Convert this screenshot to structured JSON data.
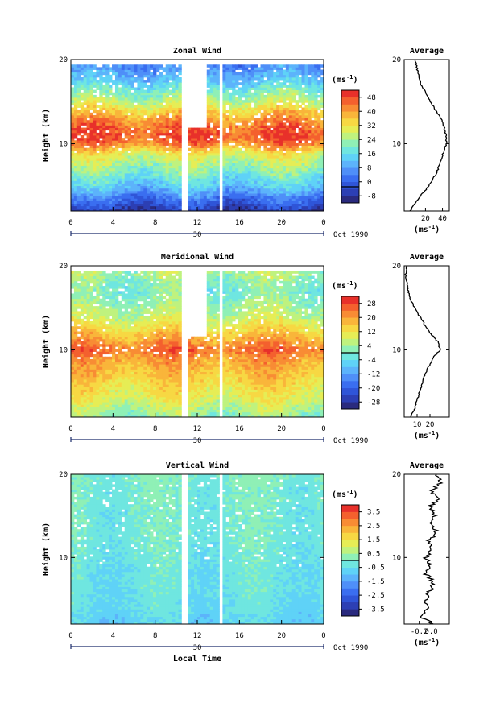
{
  "chart_data": [
    {
      "type": "heatmap",
      "title": "Zonal Wind",
      "ylabel": "Height (km)",
      "ylim": [
        2,
        20
      ],
      "y_ticks": [
        "10",
        "20"
      ],
      "xlim": [
        0,
        24
      ],
      "x_ticks": [
        "0",
        "4",
        "8",
        "12",
        "16",
        "20",
        "0"
      ],
      "date_label": "30",
      "month_label": "Oct 1990",
      "colorbar": {
        "unit_prefix": "(ms",
        "unit_sup": "-1",
        "unit_suffix": ")",
        "ticks": [
          "48",
          "40",
          "32",
          "24",
          "16",
          "8",
          "0",
          "-8"
        ],
        "range": [
          -8,
          48
        ]
      },
      "average": {
        "title": "Average",
        "xlim": [
          -5,
          48
        ],
        "x_ticks": [
          "20",
          "40"
        ],
        "ylim": [
          2,
          20
        ],
        "y_ticks": [
          "10",
          "20"
        ],
        "xlabel_prefix": "(ms",
        "xlabel_sup": "-1",
        "xlabel_suffix": ")",
        "profile": {
          "height": [
            2,
            3,
            4,
            5,
            6,
            7,
            8,
            9,
            10,
            11,
            12,
            13,
            14,
            15,
            16,
            17,
            18,
            19,
            20
          ],
          "value": [
            2,
            8,
            16,
            24,
            30,
            35,
            38,
            41,
            45,
            44,
            42,
            38,
            32,
            26,
            21,
            15,
            12,
            10,
            8
          ]
        }
      },
      "field": {
        "heights": [
          2,
          3,
          4,
          5,
          6,
          7,
          8,
          9,
          10,
          11,
          12,
          13,
          14,
          15,
          16,
          17,
          18,
          19,
          20
        ],
        "mean": [
          -4,
          2,
          8,
          14,
          18,
          22,
          26,
          30,
          40,
          44,
          42,
          38,
          32,
          26,
          22,
          16,
          12,
          8,
          8
        ],
        "noise": 6,
        "data_top": 19.3,
        "gaps": [
          [
            10.6,
            11.1
          ],
          [
            14.2,
            14.5
          ]
        ],
        "notch": [
          [
            11.2,
            13.0,
            12.0,
            20
          ]
        ]
      }
    },
    {
      "type": "heatmap",
      "title": "Meridional Wind",
      "ylabel": "Height (km)",
      "ylim": [
        2,
        20
      ],
      "y_ticks": [
        "10",
        "20"
      ],
      "xlim": [
        0,
        24
      ],
      "x_ticks": [
        "0",
        "4",
        "8",
        "12",
        "16",
        "20",
        "0"
      ],
      "date_label": "30",
      "month_label": "Oct 1990",
      "colorbar": {
        "unit_prefix": "(ms",
        "unit_sup": "-1",
        "unit_suffix": ")",
        "ticks": [
          "28",
          "20",
          "12",
          "4",
          "-4",
          "-12",
          "-20",
          "-28"
        ],
        "range": [
          -28,
          28
        ]
      },
      "average": {
        "title": "Average",
        "xlim": [
          0,
          35
        ],
        "x_ticks": [
          "10",
          "20"
        ],
        "ylim": [
          2,
          20
        ],
        "y_ticks": [
          "10",
          "20"
        ],
        "xlabel_prefix": "(ms",
        "xlabel_sup": "-1",
        "xlabel_suffix": ")",
        "profile": {
          "height": [
            2,
            3,
            4,
            5,
            6,
            7,
            8,
            9,
            10,
            11,
            12,
            13,
            14,
            15,
            16,
            17,
            18,
            19,
            20
          ],
          "value": [
            5,
            8,
            10,
            12,
            14,
            16,
            19,
            22,
            28,
            26,
            20,
            16,
            12,
            8,
            5,
            3,
            2,
            1,
            2
          ]
        }
      },
      "field": {
        "heights": [
          2,
          3,
          4,
          5,
          6,
          7,
          8,
          9,
          10,
          11,
          12,
          13,
          14,
          15,
          16,
          17,
          18,
          19,
          20
        ],
        "mean": [
          2,
          5,
          8,
          10,
          12,
          14,
          16,
          18,
          22,
          18,
          14,
          10,
          6,
          4,
          2,
          0,
          2,
          4,
          4
        ],
        "noise": 5,
        "data_top": 19.3,
        "gaps": [
          [
            10.6,
            11.1
          ],
          [
            14.2,
            14.5
          ]
        ],
        "notch": [
          [
            11.2,
            13.0,
            11.5,
            20
          ]
        ]
      }
    },
    {
      "type": "heatmap",
      "title": "Vertical Wind",
      "ylabel": "Height (km)",
      "ylim": [
        2,
        20
      ],
      "y_ticks": [
        "10",
        "20"
      ],
      "xlim": [
        0,
        24
      ],
      "x_ticks": [
        "0",
        "4",
        "8",
        "12",
        "16",
        "20",
        "0"
      ],
      "date_label": "30",
      "month_label": "Oct 1990",
      "xlabel": "Local Time",
      "colorbar": {
        "unit_prefix": "(ms",
        "unit_sup": "-1",
        "unit_suffix": ")",
        "ticks": [
          "3.5",
          "2.5",
          "1.5",
          "0.5",
          "-0.5",
          "-1.5",
          "-2.5",
          "-3.5"
        ],
        "range": [
          -3.5,
          3.5
        ]
      },
      "average": {
        "title": "Average",
        "xlim": [
          -0.45,
          0.3
        ],
        "x_ticks": [
          "-0.2",
          "0.0"
        ],
        "ylim": [
          2,
          20
        ],
        "y_ticks": [
          "10",
          "20"
        ],
        "xlabel_prefix": "(ms",
        "xlabel_sup": "-1",
        "xlabel_suffix": ")",
        "profile": {
          "height": [
            2,
            3,
            4,
            5,
            6,
            7,
            8,
            9,
            10,
            11,
            12,
            13,
            14,
            15,
            16,
            17,
            18,
            19,
            20
          ],
          "value": [
            0.05,
            -0.2,
            -0.05,
            -0.1,
            -0.02,
            0.05,
            -0.08,
            0.0,
            -0.1,
            0.0,
            -0.05,
            0.1,
            0.0,
            0.05,
            -0.02,
            0.1,
            0.0,
            0.15,
            0.1
          ]
        }
      },
      "field": {
        "heights": [
          2,
          3,
          4,
          5,
          6,
          7,
          8,
          9,
          10,
          11,
          12,
          13,
          14,
          15,
          16,
          17,
          18,
          19,
          20
        ],
        "mean": [
          -0.6,
          -0.5,
          -0.4,
          -0.4,
          -0.3,
          -0.3,
          -0.3,
          -0.3,
          -0.2,
          -0.2,
          -0.1,
          -0.1,
          -0.1,
          -0.1,
          -0.1,
          0.0,
          -0.1,
          0.0,
          0.0
        ],
        "noise": 0.45,
        "data_top": 20,
        "gaps": [
          [
            10.6,
            11.0
          ],
          [
            14.0,
            14.3
          ]
        ],
        "notch": []
      }
    }
  ]
}
